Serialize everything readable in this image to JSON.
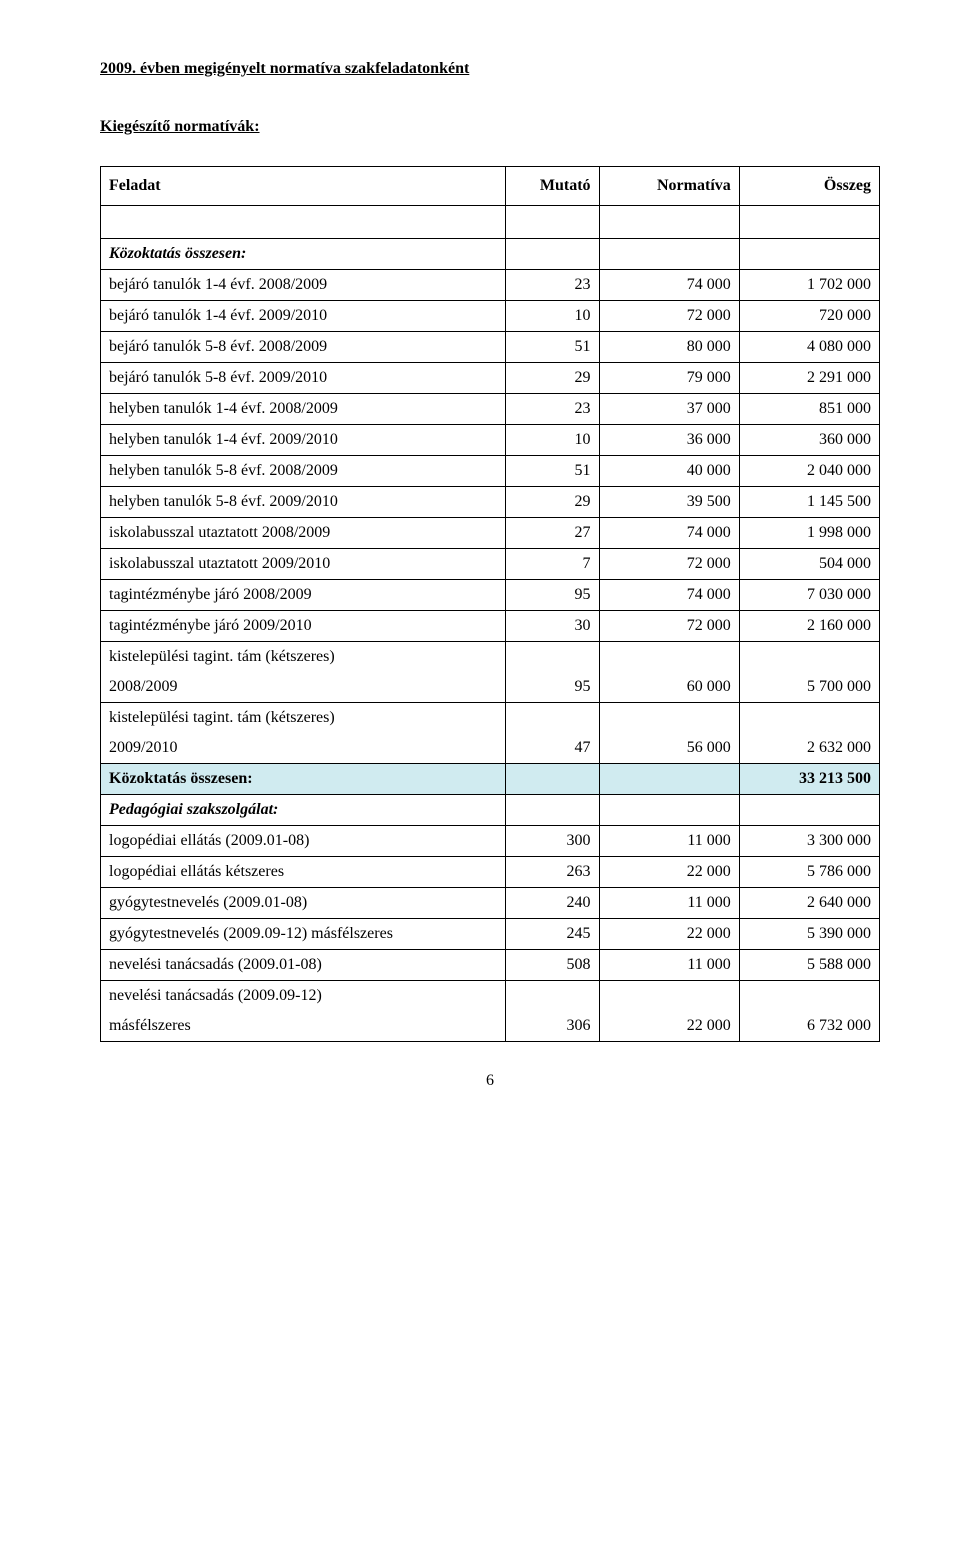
{
  "title": "2009. évben megigényelt normatíva szakfeladatonként",
  "subtitle": "Kiegészítő normatívák:",
  "header": {
    "c0": "Feladat",
    "c1": "Mutató",
    "c2": "Normatíva",
    "c3": "Összeg"
  },
  "intro": "Közoktatás összesen:",
  "rows": [
    {
      "label": "bejáró tanulók 1-4 évf. 2008/2009",
      "mutato": "23",
      "normativa": "74 000",
      "osszeg": "1 702 000"
    },
    {
      "label": "bejáró tanulók 1-4 évf. 2009/2010",
      "mutato": "10",
      "normativa": "72 000",
      "osszeg": "720 000"
    },
    {
      "label": "bejáró tanulók 5-8 évf. 2008/2009",
      "mutato": "51",
      "normativa": "80 000",
      "osszeg": "4 080 000"
    },
    {
      "label": "bejáró tanulók 5-8 évf. 2009/2010",
      "mutato": "29",
      "normativa": "79 000",
      "osszeg": "2 291 000"
    },
    {
      "label": "helyben tanulók 1-4 évf. 2008/2009",
      "mutato": "23",
      "normativa": "37 000",
      "osszeg": "851 000"
    },
    {
      "label": "helyben tanulók 1-4 évf. 2009/2010",
      "mutato": "10",
      "normativa": "36 000",
      "osszeg": "360 000"
    },
    {
      "label": "helyben tanulók 5-8 évf. 2008/2009",
      "mutato": "51",
      "normativa": "40 000",
      "osszeg": "2 040 000"
    },
    {
      "label": "helyben tanulók 5-8 évf. 2009/2010",
      "mutato": "29",
      "normativa": "39 500",
      "osszeg": "1 145 500"
    },
    {
      "label": "iskolabusszal utaztatott 2008/2009",
      "mutato": "27",
      "normativa": "74 000",
      "osszeg": "1 998 000"
    },
    {
      "label": "iskolabusszal utaztatott 2009/2010",
      "mutato": "7",
      "normativa": "72 000",
      "osszeg": "504 000"
    },
    {
      "label": "tagintézménybe járó 2008/2009",
      "mutato": "95",
      "normativa": "74 000",
      "osszeg": "7 030 000"
    },
    {
      "label": "tagintézménybe járó 2009/2010",
      "mutato": "30",
      "normativa": "72 000",
      "osszeg": "2 160 000"
    }
  ],
  "kistelep1": {
    "line1": "kistelepülési tagint. tám (kétszeres)",
    "line2": "2008/2009",
    "mutato": "95",
    "normativa": "60 000",
    "osszeg": "5 700 000"
  },
  "kistelep2": {
    "line1": "kistelepülési tagint. tám (kétszeres)",
    "line2": "2009/2010",
    "mutato": "47",
    "normativa": "56 000",
    "osszeg": "2 632 000"
  },
  "total_kozoktatas": {
    "label": "Közoktatás összesen:",
    "osszeg": "33 213 500"
  },
  "pedagogiai": "Pedagógiai szakszolgálat:",
  "rows2": [
    {
      "label": "logopédiai ellátás (2009.01-08)",
      "mutato": "300",
      "normativa": "11 000",
      "osszeg": "3 300 000"
    },
    {
      "label": "logopédiai ellátás kétszeres",
      "mutato": "263",
      "normativa": "22 000",
      "osszeg": "5 786 000"
    },
    {
      "label": "gyógytestnevelés (2009.01-08)",
      "mutato": "240",
      "normativa": "11 000",
      "osszeg": "2 640 000"
    },
    {
      "label": "gyógytestnevelés (2009.09-12) másfélszeres",
      "mutato": "245",
      "normativa": "22 000",
      "osszeg": "5 390 000"
    },
    {
      "label": "nevelési tanácsadás (2009.01-08)",
      "mutato": "508",
      "normativa": "11 000",
      "osszeg": "5 588 000"
    }
  ],
  "nevelesi2": {
    "line1": "nevelési tanácsadás (2009.09-12)",
    "line2": "másfélszeres",
    "mutato": "306",
    "normativa": "22 000",
    "osszeg": "6 732 000"
  },
  "page_number": "6",
  "colors": {
    "highlight": "#d0ebf0",
    "text": "#000000",
    "background": "#ffffff"
  }
}
